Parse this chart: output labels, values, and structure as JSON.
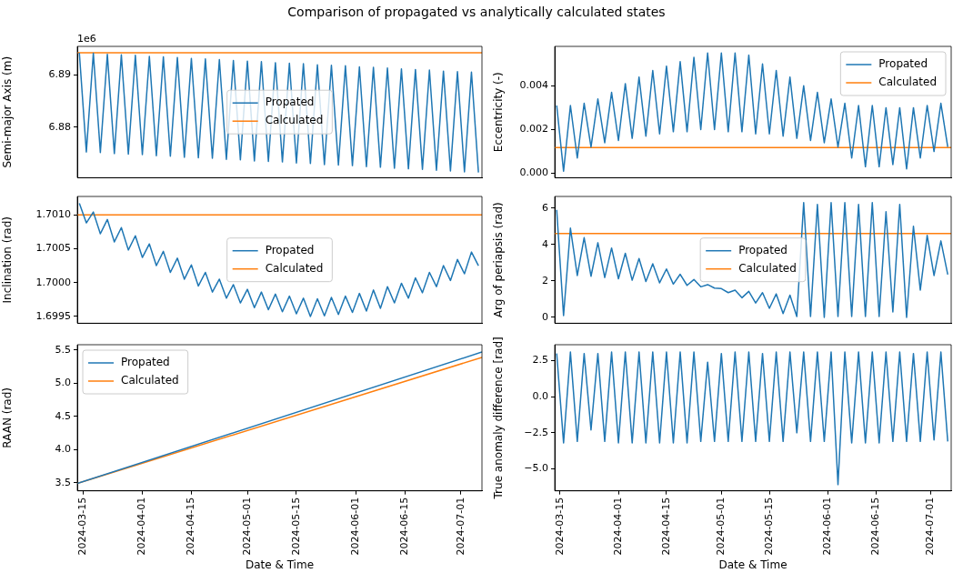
{
  "chart_data": [
    {
      "type": "line",
      "title": "Comparison of propagated vs analytically calculated states",
      "ylabel": "Semi-major Axis (m)",
      "annotations": [
        "1e6"
      ],
      "legend": "center",
      "tick_labels": "y",
      "x": [
        "2024-03-14",
        "2024-03-16",
        "2024-03-18",
        "2024-03-20",
        "2024-03-22",
        "2024-03-24",
        "2024-03-26",
        "2024-03-28",
        "2024-03-30",
        "2024-04-01",
        "2024-04-03",
        "2024-04-05",
        "2024-04-07",
        "2024-04-09",
        "2024-04-11",
        "2024-04-13",
        "2024-04-15",
        "2024-04-17",
        "2024-04-19",
        "2024-04-21",
        "2024-04-23",
        "2024-04-25",
        "2024-04-27",
        "2024-04-29",
        "2024-05-01",
        "2024-05-03",
        "2024-05-05",
        "2024-05-07",
        "2024-05-09",
        "2024-05-11",
        "2024-05-13",
        "2024-05-15",
        "2024-05-17",
        "2024-05-19",
        "2024-05-21",
        "2024-05-23",
        "2024-05-25",
        "2024-05-27",
        "2024-05-29",
        "2024-05-31",
        "2024-06-02",
        "2024-06-04",
        "2024-06-06",
        "2024-06-08",
        "2024-06-10",
        "2024-06-12",
        "2024-06-14",
        "2024-06-16",
        "2024-06-18",
        "2024-06-20",
        "2024-06-22",
        "2024-06-24",
        "2024-06-26",
        "2024-06-28",
        "2024-06-30",
        "2024-07-02",
        "2024-07-04",
        "2024-07-06"
      ],
      "xlim": [
        "2024-03-13T10:00",
        "2024-07-07"
      ],
      "ylim": [
        6.8704,
        6.8954
      ],
      "yticks": [
        6.88,
        6.89
      ],
      "series": [
        {
          "name": "Propated",
          "color": "#1f77b4",
          "values": [
            6.8942,
            6.8753,
            6.8941,
            6.8752,
            6.8939,
            6.875,
            6.8938,
            6.8749,
            6.8937,
            6.8748,
            6.8935,
            6.8746,
            6.8934,
            6.8745,
            6.8933,
            6.8743,
            6.8931,
            6.8742,
            6.893,
            6.8741,
            6.8929,
            6.8739,
            6.8927,
            6.8738,
            6.8926,
            6.8736,
            6.8925,
            6.8735,
            6.8923,
            6.8734,
            6.8922,
            6.8732,
            6.8921,
            6.8731,
            6.8919,
            6.8729,
            6.8918,
            6.8728,
            6.8917,
            6.8727,
            6.8915,
            6.8725,
            6.8914,
            6.8724,
            6.8913,
            6.8722,
            6.8911,
            6.8721,
            6.891,
            6.872,
            6.8909,
            6.8718,
            6.8907,
            6.8717,
            6.8906,
            6.8715,
            6.8905,
            6.8714
          ]
        },
        {
          "name": "Calculated",
          "color": "#ff7f0e",
          "x": [
            "2024-03-13T10:00",
            "2024-07-07"
          ],
          "values": [
            6.8942,
            6.8942
          ]
        }
      ]
    },
    {
      "type": "line",
      "ylabel": "Eccentricity (-)",
      "legend": "top right",
      "tick_labels": "y",
      "x": [
        "2024-03-14",
        "2024-03-16",
        "2024-03-18",
        "2024-03-20",
        "2024-03-22",
        "2024-03-24",
        "2024-03-26",
        "2024-03-28",
        "2024-03-30",
        "2024-04-01",
        "2024-04-03",
        "2024-04-05",
        "2024-04-07",
        "2024-04-09",
        "2024-04-11",
        "2024-04-13",
        "2024-04-15",
        "2024-04-17",
        "2024-04-19",
        "2024-04-21",
        "2024-04-23",
        "2024-04-25",
        "2024-04-27",
        "2024-04-29",
        "2024-05-01",
        "2024-05-03",
        "2024-05-05",
        "2024-05-07",
        "2024-05-09",
        "2024-05-11",
        "2024-05-13",
        "2024-05-15",
        "2024-05-17",
        "2024-05-19",
        "2024-05-21",
        "2024-05-23",
        "2024-05-25",
        "2024-05-27",
        "2024-05-29",
        "2024-05-31",
        "2024-06-02",
        "2024-06-04",
        "2024-06-06",
        "2024-06-08",
        "2024-06-10",
        "2024-06-12",
        "2024-06-14",
        "2024-06-16",
        "2024-06-18",
        "2024-06-20",
        "2024-06-22",
        "2024-06-24",
        "2024-06-26",
        "2024-06-28",
        "2024-06-30",
        "2024-07-02",
        "2024-07-04",
        "2024-07-06"
      ],
      "xlim": [
        "2024-03-13T10:00",
        "2024-07-07"
      ],
      "ylim": [
        -0.0002,
        0.0058
      ],
      "yticks": [
        {
          "value": 0,
          "label": "0.000"
        },
        {
          "value": 0.002,
          "label": "0.002"
        },
        {
          "value": 0.004,
          "label": "0.004"
        }
      ],
      "series": [
        {
          "name": "Propated",
          "color": "#1f77b4",
          "values": [
            0.0031,
            0.0001,
            0.0031,
            0.0007,
            0.0032,
            0.0012,
            0.0034,
            0.0014,
            0.0037,
            0.0015,
            0.0041,
            0.0016,
            0.0044,
            0.0017,
            0.0047,
            0.0018,
            0.0049,
            0.0019,
            0.0051,
            0.0019,
            0.0053,
            0.002,
            0.0055,
            0.002,
            0.0055,
            0.0019,
            0.0055,
            0.0019,
            0.0054,
            0.0018,
            0.005,
            0.0018,
            0.0047,
            0.0017,
            0.0044,
            0.0016,
            0.004,
            0.0015,
            0.0037,
            0.0014,
            0.0034,
            0.0012,
            0.0032,
            0.0007,
            0.0031,
            0.0003,
            0.0031,
            0.0003,
            0.003,
            0.0004,
            0.003,
            0.0002,
            0.003,
            0.0007,
            0.0031,
            0.001,
            0.0032,
            0.0012
          ]
        },
        {
          "name": "Calculated",
          "color": "#ff7f0e",
          "x": [
            "2024-03-13T10:00",
            "2024-07-07"
          ],
          "values": [
            0.00118,
            0.00118
          ]
        }
      ]
    },
    {
      "type": "line",
      "ylabel": "Inclination (rad)",
      "legend": "center",
      "tick_labels": "y",
      "x": [
        "2024-03-14",
        "2024-03-16",
        "2024-03-18",
        "2024-03-20",
        "2024-03-22",
        "2024-03-24",
        "2024-03-26",
        "2024-03-28",
        "2024-03-30",
        "2024-04-01",
        "2024-04-03",
        "2024-04-05",
        "2024-04-07",
        "2024-04-09",
        "2024-04-11",
        "2024-04-13",
        "2024-04-15",
        "2024-04-17",
        "2024-04-19",
        "2024-04-21",
        "2024-04-23",
        "2024-04-25",
        "2024-04-27",
        "2024-04-29",
        "2024-05-01",
        "2024-05-03",
        "2024-05-05",
        "2024-05-07",
        "2024-05-09",
        "2024-05-11",
        "2024-05-13",
        "2024-05-15",
        "2024-05-17",
        "2024-05-19",
        "2024-05-21",
        "2024-05-23",
        "2024-05-25",
        "2024-05-27",
        "2024-05-29",
        "2024-05-31",
        "2024-06-02",
        "2024-06-04",
        "2024-06-06",
        "2024-06-08",
        "2024-06-10",
        "2024-06-12",
        "2024-06-14",
        "2024-06-16",
        "2024-06-18",
        "2024-06-20",
        "2024-06-22",
        "2024-06-24",
        "2024-06-26",
        "2024-06-28",
        "2024-06-30",
        "2024-07-02",
        "2024-07-04",
        "2024-07-06"
      ],
      "xlim": [
        "2024-03-13T10:00",
        "2024-07-07"
      ],
      "ylim": [
        1.6994,
        1.70127
      ],
      "yticks": [
        1.6995,
        {
          "value": 1.7,
          "label": "1.7000"
        },
        1.7005,
        {
          "value": 1.701,
          "label": "1.7010"
        }
      ],
      "series": [
        {
          "name": "Propated",
          "color": "#1f77b4",
          "values": [
            1.70117,
            1.70088,
            1.70104,
            1.70072,
            1.70093,
            1.7006,
            1.70081,
            1.70048,
            1.70069,
            1.70037,
            1.70057,
            1.70025,
            1.70046,
            1.70015,
            1.70036,
            1.70005,
            1.70026,
            1.69995,
            1.70015,
            1.69986,
            1.70005,
            1.69977,
            1.69997,
            1.6997,
            1.6999,
            1.69963,
            1.69986,
            1.6996,
            1.69983,
            1.69957,
            1.6998,
            1.69954,
            1.69977,
            1.6995,
            1.69976,
            1.69951,
            1.69978,
            1.69953,
            1.6998,
            1.69956,
            1.69984,
            1.69958,
            1.69989,
            1.69962,
            1.69994,
            1.6997,
            1.69999,
            1.69977,
            1.70007,
            1.69985,
            1.70015,
            1.69994,
            1.70025,
            1.70003,
            1.70034,
            1.70013,
            1.70045,
            1.70025
          ]
        },
        {
          "name": "Calculated",
          "color": "#ff7f0e",
          "x": [
            "2024-03-13T10:00",
            "2024-07-07"
          ],
          "values": [
            1.701,
            1.701
          ]
        }
      ]
    },
    {
      "type": "line",
      "ylabel": "Arg of periapsis (rad)",
      "legend": "center",
      "tick_labels": "y",
      "x": [
        "2024-03-14",
        "2024-03-16",
        "2024-03-18",
        "2024-03-20",
        "2024-03-22",
        "2024-03-24",
        "2024-03-26",
        "2024-03-28",
        "2024-03-30",
        "2024-04-01",
        "2024-04-03",
        "2024-04-05",
        "2024-04-07",
        "2024-04-09",
        "2024-04-11",
        "2024-04-13",
        "2024-04-15",
        "2024-04-17",
        "2024-04-19",
        "2024-04-21",
        "2024-04-23",
        "2024-04-25",
        "2024-04-27",
        "2024-04-29",
        "2024-05-01",
        "2024-05-03",
        "2024-05-05",
        "2024-05-07",
        "2024-05-09",
        "2024-05-11",
        "2024-05-13",
        "2024-05-15",
        "2024-05-17",
        "2024-05-19",
        "2024-05-21",
        "2024-05-23",
        "2024-05-25",
        "2024-05-27",
        "2024-05-29",
        "2024-05-31",
        "2024-06-02",
        "2024-06-04",
        "2024-06-06",
        "2024-06-08",
        "2024-06-10",
        "2024-06-12",
        "2024-06-14",
        "2024-06-16",
        "2024-06-18",
        "2024-06-20",
        "2024-06-22",
        "2024-06-24",
        "2024-06-26",
        "2024-06-28",
        "2024-06-30",
        "2024-07-02",
        "2024-07-04",
        "2024-07-06"
      ],
      "xlim": [
        "2024-03-13T10:00",
        "2024-07-07"
      ],
      "ylim": [
        -0.32,
        6.64
      ],
      "yticks": [
        0,
        2,
        4,
        6
      ],
      "series": [
        {
          "name": "Propated",
          "color": "#1f77b4",
          "values": [
            5.9,
            0.1,
            4.9,
            2.3,
            4.38,
            2.26,
            4.1,
            2.19,
            3.81,
            2.12,
            3.52,
            2.04,
            3.23,
            1.97,
            2.95,
            1.9,
            2.66,
            1.83,
            2.37,
            1.76,
            2.08,
            1.68,
            1.8,
            1.61,
            1.58,
            1.36,
            1.5,
            1.08,
            1.43,
            0.79,
            1.36,
            0.5,
            1.29,
            0.21,
            1.22,
            0.05,
            6.3,
            0.05,
            6.2,
            0.0,
            6.3,
            0.05,
            6.3,
            0.05,
            6.2,
            0.05,
            6.3,
            0.05,
            5.8,
            0.3,
            6.2,
            0.0,
            5.0,
            1.5,
            4.5,
            2.3,
            4.2,
            2.35
          ]
        },
        {
          "name": "Calculated",
          "color": "#ff7f0e",
          "x": [
            "2024-03-13T10:00",
            "2024-07-07"
          ],
          "values": [
            4.6,
            4.6
          ]
        }
      ]
    },
    {
      "type": "line",
      "ylabel": "RAAN (rad)",
      "xlabel": "Date & Time",
      "legend": "top left",
      "xlim": [
        "2024-03-13T10:00",
        "2024-07-07"
      ],
      "ylim": [
        3.38,
        5.58
      ],
      "yticks": [
        3.5,
        {
          "value": 4,
          "label": "4.0"
        },
        4.5,
        {
          "value": 5,
          "label": "5.0"
        },
        5.5
      ],
      "xticks": [
        "2024-03-15",
        "2024-04-01",
        "2024-04-15",
        "2024-05-01",
        "2024-05-15",
        "2024-06-01",
        "2024-06-15",
        "2024-07-01"
      ],
      "series": [
        {
          "name": "Propated",
          "color": "#1f77b4",
          "x": [
            "2024-03-13T10:00",
            "2024-07-07"
          ],
          "values": [
            3.49,
            5.47
          ]
        },
        {
          "name": "Calculated",
          "color": "#ff7f0e",
          "x": [
            "2024-03-13T10:00",
            "2024-07-07"
          ],
          "values": [
            3.49,
            5.39
          ]
        }
      ]
    },
    {
      "type": "line",
      "ylabel": "True anomaly difference [rad]",
      "xlabel": "Date & Time",
      "x": [
        "2024-03-14",
        "2024-03-16",
        "2024-03-18",
        "2024-03-20",
        "2024-03-22",
        "2024-03-24",
        "2024-03-26",
        "2024-03-28",
        "2024-03-30",
        "2024-04-01",
        "2024-04-03",
        "2024-04-05",
        "2024-04-07",
        "2024-04-09",
        "2024-04-11",
        "2024-04-13",
        "2024-04-15",
        "2024-04-17",
        "2024-04-19",
        "2024-04-21",
        "2024-04-23",
        "2024-04-25",
        "2024-04-27",
        "2024-04-29",
        "2024-05-01",
        "2024-05-03",
        "2024-05-05",
        "2024-05-07",
        "2024-05-09",
        "2024-05-11",
        "2024-05-13",
        "2024-05-15",
        "2024-05-17",
        "2024-05-19",
        "2024-05-21",
        "2024-05-23",
        "2024-05-25",
        "2024-05-27",
        "2024-05-29",
        "2024-05-31",
        "2024-06-02",
        "2024-06-04",
        "2024-06-06",
        "2024-06-08",
        "2024-06-10",
        "2024-06-12",
        "2024-06-14",
        "2024-06-16",
        "2024-06-18",
        "2024-06-20",
        "2024-06-22",
        "2024-06-24",
        "2024-06-26",
        "2024-06-28",
        "2024-06-30",
        "2024-07-02",
        "2024-07-04",
        "2024-07-06"
      ],
      "xlim": [
        "2024-03-13T10:00",
        "2024-07-07"
      ],
      "ylim": [
        -6.53,
        3.61
      ],
      "yticks": [
        {
          "value": -5,
          "label": "−5.0"
        },
        {
          "value": -2.5,
          "label": "−2.5"
        },
        {
          "value": 0,
          "label": "0.0"
        },
        2.5
      ],
      "xticks": [
        "2024-03-15",
        "2024-04-01",
        "2024-04-15",
        "2024-05-01",
        "2024-05-15",
        "2024-06-01",
        "2024-06-15",
        "2024-07-01"
      ],
      "series": [
        {
          "color": "#1f77b4",
          "values": [
            3.0,
            -3.2,
            3.1,
            -3.1,
            3.0,
            -2.3,
            3.0,
            -3.1,
            3.1,
            -3.2,
            3.1,
            -3.2,
            3.1,
            -3.2,
            3.1,
            -3.2,
            3.1,
            -3.2,
            3.1,
            -3.2,
            3.1,
            -3.1,
            2.4,
            -3.1,
            3.0,
            -3.1,
            3.1,
            -3.1,
            3.1,
            -3.1,
            3.0,
            -3.1,
            3.1,
            -3.1,
            3.1,
            -2.5,
            3.1,
            -3.1,
            3.1,
            -3.1,
            3.1,
            -6.1,
            3.1,
            -3.2,
            3.1,
            -3.2,
            3.1,
            -3.2,
            3.1,
            -3.1,
            3.1,
            -3.1,
            3.0,
            -3.1,
            3.1,
            -3.0,
            3.1,
            -3.1
          ]
        }
      ]
    }
  ]
}
